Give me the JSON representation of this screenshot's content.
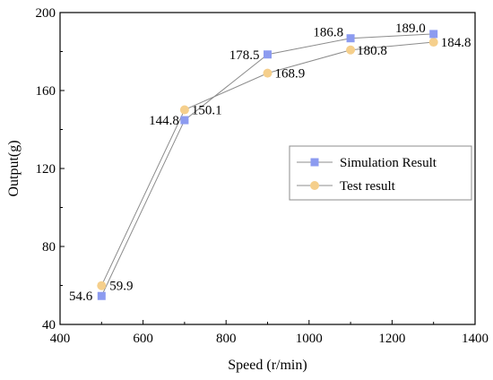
{
  "chart_data": {
    "type": "line",
    "xlabel": "Speed (r/min)",
    "ylabel": "Output(g)",
    "xlim": [
      400,
      1400
    ],
    "ylim": [
      40,
      200
    ],
    "xticks": [
      "400",
      "600",
      "800",
      "1000",
      "1200",
      "1400"
    ],
    "yticks": [
      "40",
      "80",
      "120",
      "160",
      "200"
    ],
    "grid": false,
    "legend_position": "center-right",
    "x": [
      500,
      700,
      900,
      1100,
      1300
    ],
    "series": [
      {
        "name": "Simulation Result",
        "marker": "square",
        "color": "#8c9bf0",
        "values": [
          54.6,
          144.8,
          178.5,
          186.8,
          189.0
        ],
        "labels": [
          "54.6",
          "144.8",
          "178.5",
          "186.8",
          "189.0"
        ]
      },
      {
        "name": "Test result",
        "marker": "circle",
        "color": "#f5cf8c",
        "values": [
          59.9,
          150.1,
          168.9,
          180.8,
          184.8
        ],
        "labels": [
          "59.9",
          "150.1",
          "168.9",
          "180.8",
          "184.8"
        ]
      }
    ],
    "line_color": "#8c8c8c"
  }
}
